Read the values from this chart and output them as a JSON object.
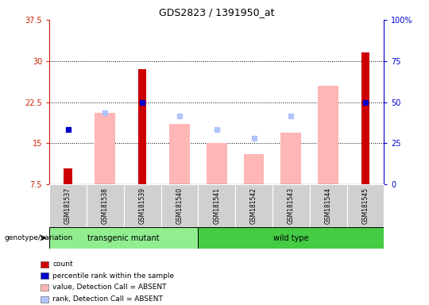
{
  "title": "GDS2823 / 1391950_at",
  "samples": [
    "GSM181537",
    "GSM181538",
    "GSM181539",
    "GSM181540",
    "GSM181541",
    "GSM181542",
    "GSM181543",
    "GSM181544",
    "GSM181545"
  ],
  "transgenic_count": 4,
  "red_bar_values": [
    10.5,
    null,
    28.5,
    null,
    null,
    null,
    null,
    null,
    31.5
  ],
  "pink_bar_values": [
    null,
    20.5,
    null,
    18.5,
    15.0,
    13.0,
    17.0,
    25.5,
    null
  ],
  "blue_sq_values": [
    17.5,
    null,
    22.5,
    null,
    null,
    null,
    null,
    null,
    22.5
  ],
  "lightblue_sq_values": [
    null,
    20.5,
    null,
    20.0,
    17.5,
    16.0,
    20.0,
    null,
    null
  ],
  "ylim_left": [
    7.5,
    37.5
  ],
  "ylim_right": [
    0,
    100
  ],
  "yticks_left": [
    7.5,
    15.0,
    22.5,
    30.0,
    37.5
  ],
  "yticks_left_labels": [
    "7.5",
    "15",
    "22.5",
    "30",
    "37.5"
  ],
  "yticks_right": [
    0,
    25,
    50,
    75,
    100
  ],
  "yticks_right_labels": [
    "0",
    "25",
    "50",
    "75",
    "100%"
  ],
  "left_axis_color": "#cc2200",
  "right_axis_color": "#0000cc",
  "red_color": "#cc0000",
  "pink_color": "#ffb6b6",
  "blue_color": "#0000cc",
  "lightblue_color": "#b0c4ff",
  "group_green_light": "#90ee90",
  "group_green_dark": "#44cc44",
  "cell_gray": "#d0d0d0",
  "red_bar_width": 0.22,
  "pink_bar_width": 0.55,
  "legend_items": [
    {
      "color": "#cc0000",
      "label": "count"
    },
    {
      "color": "#0000cc",
      "label": "percentile rank within the sample"
    },
    {
      "color": "#ffb6b6",
      "label": "value, Detection Call = ABSENT"
    },
    {
      "color": "#b0c4ff",
      "label": "rank, Detection Call = ABSENT"
    }
  ]
}
